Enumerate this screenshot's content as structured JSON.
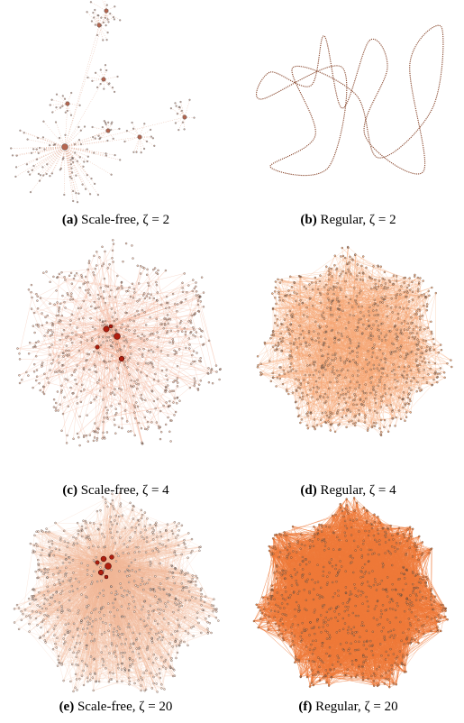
{
  "figure": {
    "subfigures": [
      {
        "label": "(a)",
        "caption": "Scale-free, ζ = 2"
      },
      {
        "label": "(b)",
        "caption": "Regular, ζ = 2"
      },
      {
        "label": "(c)",
        "caption": "Scale-free, ζ = 4"
      },
      {
        "label": "(d)",
        "caption": "Regular, ζ = 4"
      },
      {
        "label": "(e)",
        "caption": "Scale-free, ζ = 20"
      },
      {
        "label": "(f)",
        "caption": "Regular, ζ = 20"
      }
    ]
  }
}
